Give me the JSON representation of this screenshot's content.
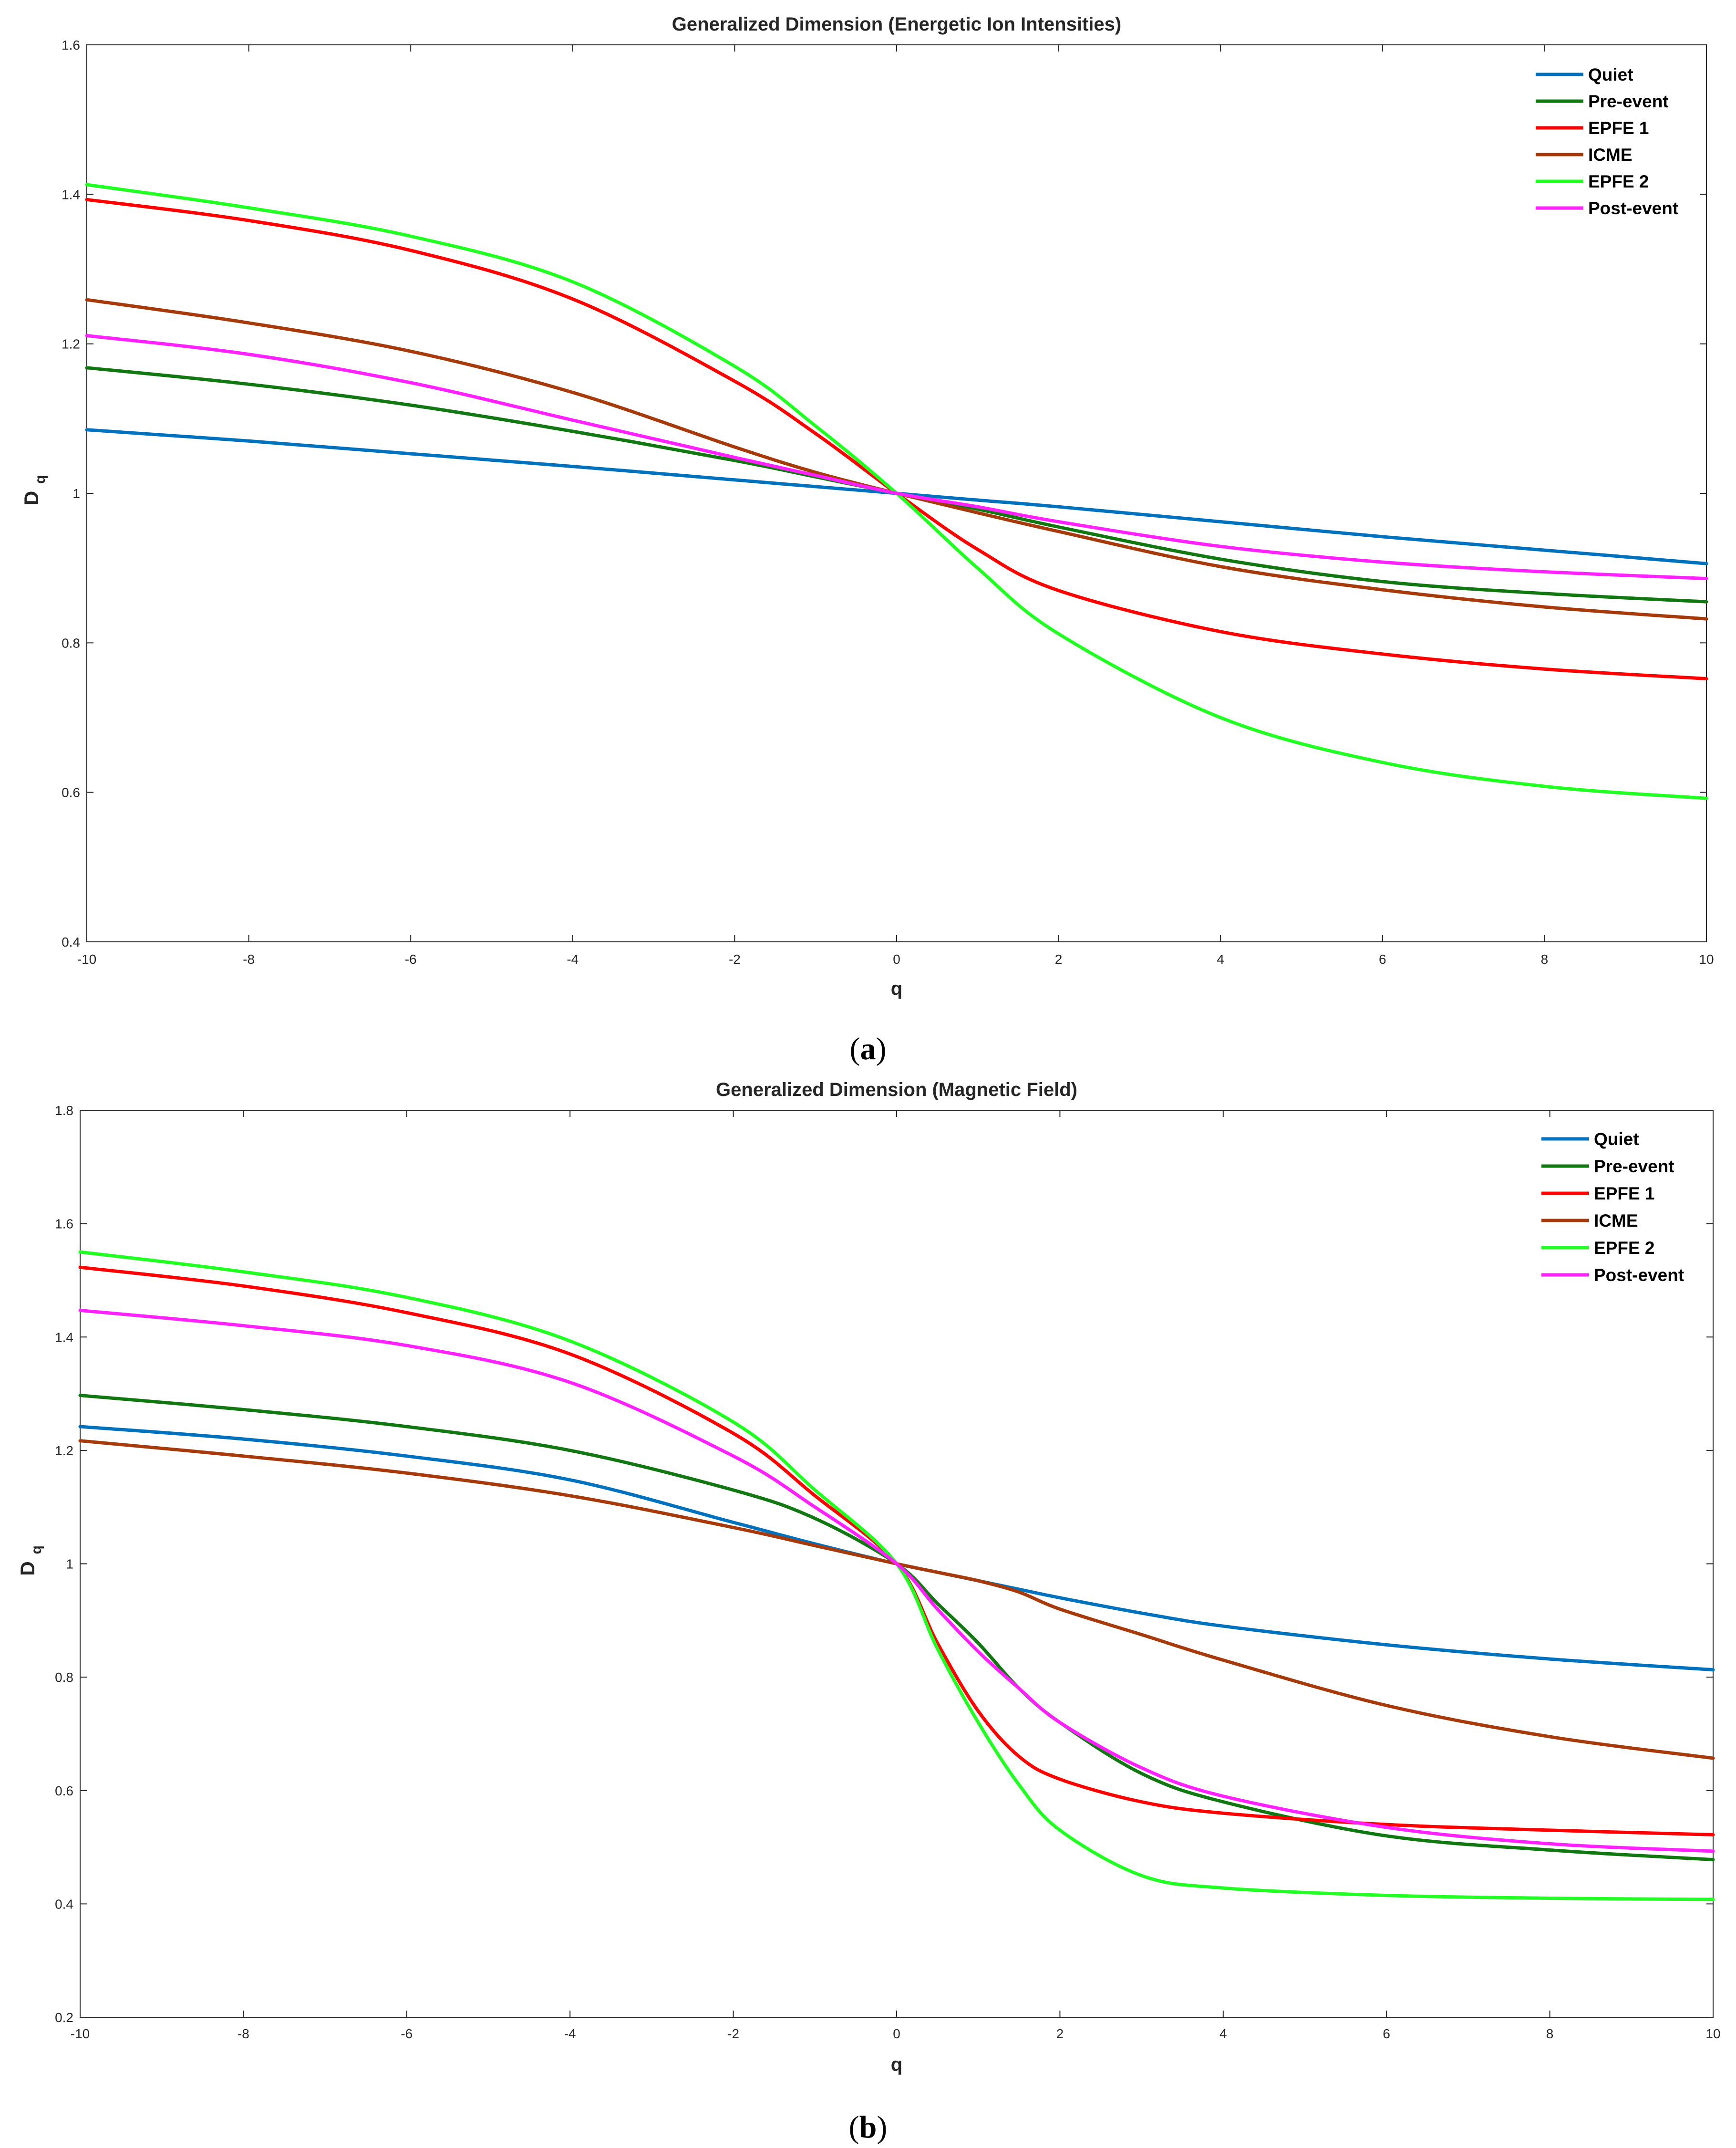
{
  "chart_data": [
    {
      "type": "line",
      "title": "Generalized Dimension (Energetic Ion Intensities)",
      "xlabel": "q",
      "ylabel": "D",
      "ylabel_subscript": "q",
      "xlim": [
        -10,
        10
      ],
      "ylim": [
        0.4,
        1.6
      ],
      "xticks": [
        -10,
        -8,
        -6,
        -4,
        -2,
        0,
        2,
        4,
        6,
        8,
        10
      ],
      "yticks": [
        0.4,
        0.6,
        0.8,
        1,
        1.2,
        1.4,
        1.6
      ],
      "legend_position": "top-right",
      "caption_letter": "a",
      "x": [
        -10,
        -8,
        -6,
        -4,
        -2,
        -1,
        0,
        1,
        2,
        4,
        6,
        8,
        10
      ],
      "series": [
        {
          "name": "Quiet",
          "color": "#0072BD",
          "values": [
            1.085,
            1.07,
            1.053,
            1.036,
            1.018,
            1.009,
            1.0,
            0.991,
            0.982,
            0.962,
            0.942,
            0.924,
            0.906
          ]
        },
        {
          "name": "Pre-event",
          "color": "#117711",
          "values": [
            1.168,
            1.146,
            1.118,
            1.083,
            1.044,
            1.022,
            1.0,
            0.979,
            0.955,
            0.912,
            0.882,
            0.866,
            0.855
          ]
        },
        {
          "name": "EPFE 1",
          "color": "#FF0000",
          "values": [
            1.393,
            1.365,
            1.325,
            1.26,
            1.15,
            1.08,
            1.0,
            0.925,
            0.87,
            0.815,
            0.785,
            0.765,
            0.752
          ]
        },
        {
          "name": "ICME",
          "color": "#A63A0A",
          "values": [
            1.259,
            1.228,
            1.19,
            1.135,
            1.062,
            1.028,
            1.0,
            0.974,
            0.949,
            0.902,
            0.871,
            0.848,
            0.832
          ]
        },
        {
          "name": "EPFE 2",
          "color": "#22FF22",
          "values": [
            1.413,
            1.382,
            1.344,
            1.283,
            1.17,
            1.09,
            1.0,
            0.9,
            0.812,
            0.7,
            0.64,
            0.608,
            0.592
          ]
        },
        {
          "name": "Post-event",
          "color": "#FF22FF",
          "values": [
            1.211,
            1.186,
            1.148,
            1.098,
            1.048,
            1.024,
            1.0,
            0.982,
            0.962,
            0.929,
            0.908,
            0.895,
            0.886
          ]
        }
      ]
    },
    {
      "type": "line",
      "title": "Generalized Dimension (Magnetic Field)",
      "xlabel": "q",
      "ylabel": "D",
      "ylabel_subscript": "q",
      "xlim": [
        -10,
        10
      ],
      "ylim": [
        0.2,
        1.8
      ],
      "xticks": [
        -10,
        -8,
        -6,
        -4,
        -2,
        0,
        2,
        4,
        6,
        8,
        10
      ],
      "yticks": [
        0.2,
        0.4,
        0.6,
        0.8,
        1,
        1.2,
        1.4,
        1.6,
        1.8
      ],
      "legend_position": "top-right",
      "caption_letter": "b",
      "x": [
        -10,
        -8,
        -6,
        -4,
        -2,
        -1,
        0,
        0.5,
        1,
        1.5,
        2,
        3,
        4,
        6,
        8,
        10
      ],
      "series": [
        {
          "name": "Quiet",
          "color": "#0072BD",
          "values": [
            1.242,
            1.22,
            1.19,
            1.148,
            1.073,
            1.035,
            1.0,
            0.985,
            0.97,
            0.955,
            0.94,
            0.913,
            0.89,
            0.857,
            0.832,
            0.813
          ]
        },
        {
          "name": "Pre-event",
          "color": "#117711",
          "values": [
            1.297,
            1.272,
            1.242,
            1.2,
            1.13,
            1.08,
            1.0,
            0.93,
            0.86,
            0.78,
            0.72,
            0.63,
            0.58,
            0.52,
            0.495,
            0.478
          ]
        },
        {
          "name": "EPFE 1",
          "color": "#FF0000",
          "values": [
            1.523,
            1.49,
            1.443,
            1.37,
            1.23,
            1.12,
            1.0,
            0.86,
            0.74,
            0.66,
            0.62,
            0.58,
            0.56,
            0.54,
            0.53,
            0.522
          ]
        },
        {
          "name": "ICME",
          "color": "#A63A0A",
          "values": [
            1.217,
            1.19,
            1.16,
            1.12,
            1.064,
            1.032,
            1.0,
            0.985,
            0.97,
            0.95,
            0.92,
            0.875,
            0.83,
            0.75,
            0.695,
            0.657
          ]
        },
        {
          "name": "EPFE 2",
          "color": "#22FF22",
          "values": [
            1.55,
            1.515,
            1.47,
            1.393,
            1.25,
            1.13,
            1.0,
            0.85,
            0.72,
            0.61,
            0.53,
            0.45,
            0.428,
            0.415,
            0.41,
            0.408
          ]
        },
        {
          "name": "Post-event",
          "color": "#FF22FF",
          "values": [
            1.447,
            1.42,
            1.385,
            1.32,
            1.19,
            1.1,
            1.0,
            0.92,
            0.845,
            0.78,
            0.72,
            0.64,
            0.59,
            0.535,
            0.506,
            0.493
          ]
        }
      ]
    }
  ]
}
